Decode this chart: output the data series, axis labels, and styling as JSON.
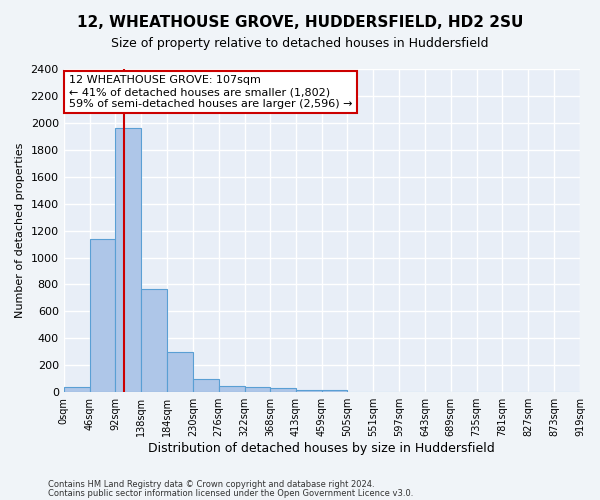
{
  "title1": "12, WHEATHOUSE GROVE, HUDDERSFIELD, HD2 2SU",
  "title2": "Size of property relative to detached houses in Huddersfield",
  "xlabel": "Distribution of detached houses by size in Huddersfield",
  "ylabel": "Number of detached properties",
  "bar_color": "#aec6e8",
  "bar_edge_color": "#5a9fd4",
  "background_color": "#e8eef7",
  "grid_color": "#ffffff",
  "bin_edges": [
    0,
    46,
    92,
    138,
    184,
    230,
    276,
    322,
    368,
    413,
    459,
    505,
    551,
    597,
    643,
    689,
    735,
    781,
    827,
    873,
    919
  ],
  "bar_heights": [
    35,
    1140,
    1960,
    770,
    300,
    100,
    48,
    40,
    30,
    20,
    20,
    0,
    0,
    0,
    0,
    0,
    0,
    0,
    0,
    0
  ],
  "property_size": 107,
  "red_line_color": "#cc0000",
  "annotation_line1": "12 WHEATHOUSE GROVE: 107sqm",
  "annotation_line2": "← 41% of detached houses are smaller (1,802)",
  "annotation_line3": "59% of semi-detached houses are larger (2,596) →",
  "annotation_box_color": "#ffffff",
  "annotation_box_edge_color": "#cc0000",
  "ylim": [
    0,
    2400
  ],
  "yticks": [
    0,
    200,
    400,
    600,
    800,
    1000,
    1200,
    1400,
    1600,
    1800,
    2000,
    2200,
    2400
  ],
  "fig_bg_color": "#f0f4f8",
  "footer1": "Contains HM Land Registry data © Crown copyright and database right 2024.",
  "footer2": "Contains public sector information licensed under the Open Government Licence v3.0.",
  "tick_labels": [
    "0sqm",
    "46sqm",
    "92sqm",
    "138sqm",
    "184sqm",
    "230sqm",
    "276sqm",
    "322sqm",
    "368sqm",
    "413sqm",
    "459sqm",
    "505sqm",
    "551sqm",
    "597sqm",
    "643sqm",
    "689sqm",
    "735sqm",
    "781sqm",
    "827sqm",
    "873sqm",
    "919sqm"
  ]
}
